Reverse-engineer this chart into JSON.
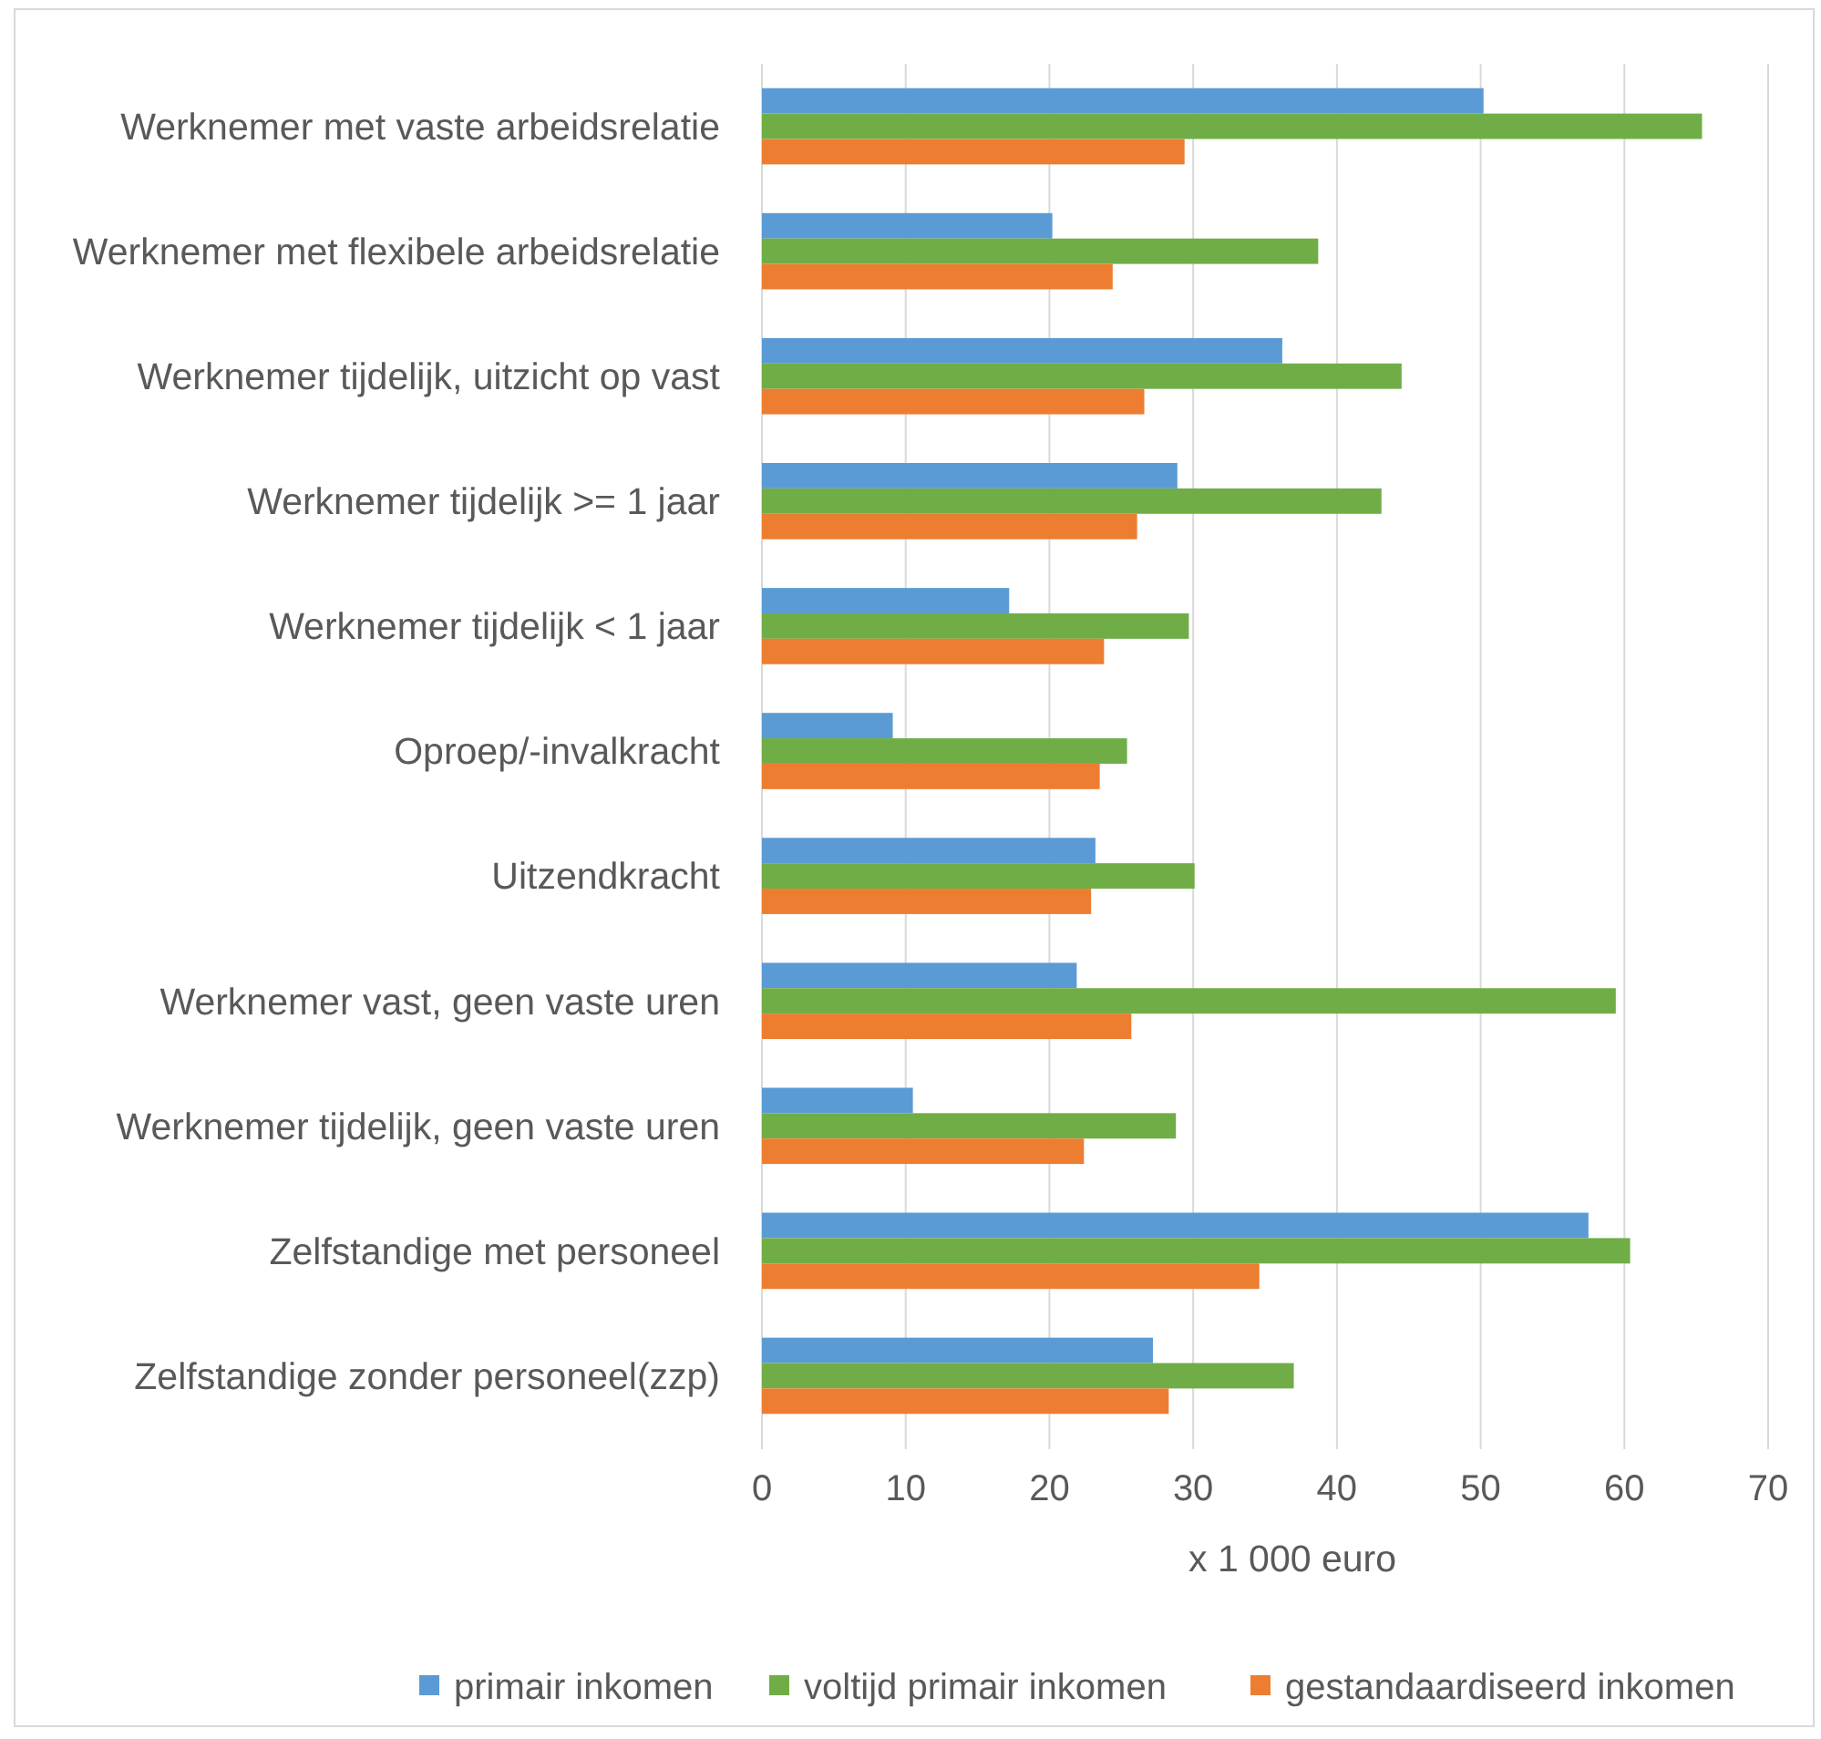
{
  "chart_data": {
    "type": "bar",
    "orientation": "horizontal",
    "xlabel": "x 1 000 euro",
    "categories": [
      "Werknemer met vaste arbeidsrelatie",
      "Werknemer met flexibele arbeidsrelatie",
      "Werknemer tijdelijk, uitzicht op vast",
      "Werknemer tijdelijk >= 1 jaar",
      "Werknemer tijdelijk < 1 jaar",
      "Oproep/-invalkracht",
      "Uitzendkracht",
      "Werknemer vast, geen vaste uren",
      "Werknemer tijdelijk, geen vaste uren",
      "Zelfstandige met personeel",
      "Zelfstandige zonder personeel(zzp)"
    ],
    "series": [
      {
        "name": "primair inkomen",
        "color": "#5b9bd5",
        "values": [
          50.2,
          20.2,
          36.2,
          28.9,
          17.2,
          9.1,
          23.2,
          21.9,
          10.5,
          57.5,
          27.2
        ]
      },
      {
        "name": "voltijd primair inkomen",
        "color": "#70ad47",
        "values": [
          65.4,
          38.7,
          44.5,
          43.1,
          29.7,
          25.4,
          30.1,
          59.4,
          28.8,
          60.4,
          37.0
        ]
      },
      {
        "name": "gestandaardiseerd inkomen",
        "color": "#ed7d31",
        "values": [
          29.4,
          24.4,
          26.6,
          26.1,
          23.8,
          23.5,
          22.9,
          25.7,
          22.4,
          34.6,
          28.3
        ]
      }
    ],
    "xlim": [
      0,
      70
    ],
    "xticks": [
      0,
      10,
      20,
      30,
      40,
      50,
      60,
      70
    ],
    "grid": "x",
    "legend": "bottom"
  }
}
